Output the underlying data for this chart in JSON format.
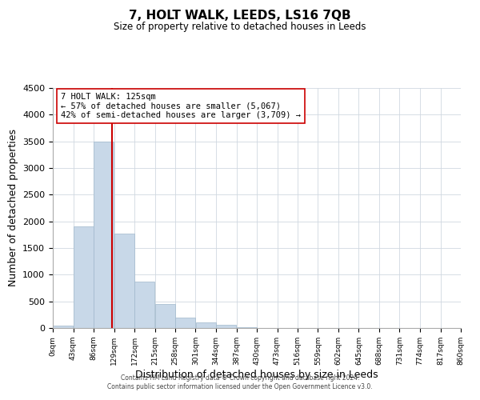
{
  "title": "7, HOLT WALK, LEEDS, LS16 7QB",
  "subtitle": "Size of property relative to detached houses in Leeds",
  "xlabel": "Distribution of detached houses by size in Leeds",
  "ylabel": "Number of detached properties",
  "bar_color": "#c8d8e8",
  "bar_edge_color": "#a0b8cc",
  "vline_x": 125,
  "vline_color": "#cc0000",
  "annotation_title": "7 HOLT WALK: 125sqm",
  "annotation_line1": "← 57% of detached houses are smaller (5,067)",
  "annotation_line2": "42% of semi-detached houses are larger (3,709) →",
  "bin_edges": [
    0,
    43,
    86,
    129,
    172,
    215,
    258,
    301,
    344,
    387,
    430,
    473,
    516,
    559,
    602,
    645,
    688,
    731,
    774,
    817,
    860
  ],
  "bar_heights": [
    50,
    1900,
    3500,
    1775,
    875,
    450,
    190,
    100,
    55,
    20,
    0,
    0,
    0,
    0,
    0,
    0,
    0,
    0,
    0,
    0
  ],
  "ylim": [
    0,
    4500
  ],
  "yticks": [
    0,
    500,
    1000,
    1500,
    2000,
    2500,
    3000,
    3500,
    4000,
    4500
  ],
  "xtick_labels": [
    "0sqm",
    "43sqm",
    "86sqm",
    "129sqm",
    "172sqm",
    "215sqm",
    "258sqm",
    "301sqm",
    "344sqm",
    "387sqm",
    "430sqm",
    "473sqm",
    "516sqm",
    "559sqm",
    "602sqm",
    "645sqm",
    "688sqm",
    "731sqm",
    "774sqm",
    "817sqm",
    "860sqm"
  ],
  "footer_line1": "Contains HM Land Registry data © Crown copyright and database right 2024.",
  "footer_line2": "Contains public sector information licensed under the Open Government Licence v3.0.",
  "background_color": "#ffffff",
  "grid_color": "#d0d8e0"
}
